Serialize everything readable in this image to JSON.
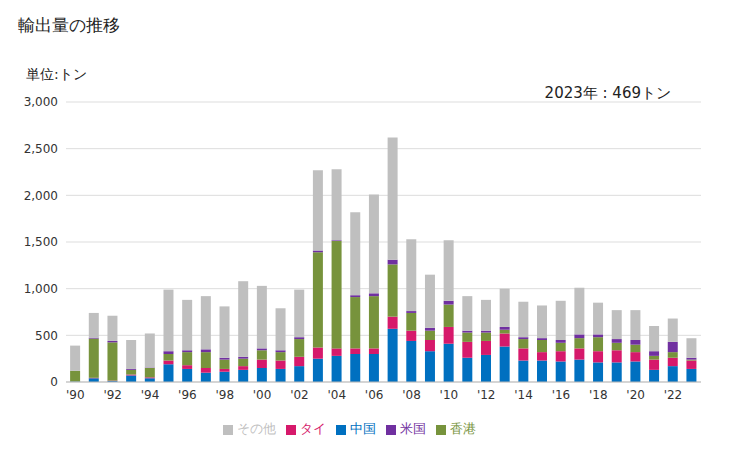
{
  "chart_data": {
    "type": "bar",
    "title": "輸出量の推移",
    "ylabel": "単位:トン",
    "annotations": [
      "2023年 : 469トン"
    ],
    "categories": [
      "'90",
      null,
      "'92",
      null,
      "'94",
      null,
      "'96",
      null,
      "'98",
      null,
      "'00",
      null,
      "'02",
      null,
      "'04",
      null,
      "'06",
      null,
      "'08",
      null,
      "'10",
      null,
      "'12",
      null,
      "'14",
      null,
      "'16",
      null,
      "'18",
      null,
      "'20",
      null,
      "'22",
      null
    ],
    "series": [
      {
        "name": "中国",
        "color": "#0070c0",
        "values": [
          5,
          40,
          10,
          70,
          40,
          190,
          140,
          100,
          110,
          130,
          150,
          140,
          170,
          250,
          280,
          300,
          300,
          570,
          440,
          330,
          410,
          260,
          290,
          380,
          230,
          230,
          220,
          240,
          210,
          210,
          220,
          130,
          170,
          140
        ]
      },
      {
        "name": "タイ",
        "color": "#d6196b",
        "values": [
          0,
          5,
          5,
          10,
          10,
          40,
          40,
          50,
          30,
          40,
          90,
          90,
          100,
          120,
          80,
          60,
          60,
          130,
          110,
          120,
          180,
          170,
          150,
          140,
          130,
          90,
          110,
          120,
          120,
          130,
          100,
          110,
          90,
          90
        ]
      },
      {
        "name": "香港",
        "color": "#77933c",
        "values": [
          115,
          420,
          410,
          50,
          100,
          70,
          140,
          170,
          100,
          80,
          100,
          90,
          190,
          1020,
          1150,
          550,
          560,
          560,
          190,
          100,
          240,
          100,
          90,
          40,
          100,
          130,
          90,
          110,
          150,
          80,
          80,
          40,
          60,
          10
        ]
      },
      {
        "name": "米国",
        "color": "#7030a0",
        "values": [
          0,
          10,
          15,
          10,
          5,
          30,
          20,
          30,
          20,
          20,
          20,
          20,
          20,
          20,
          10,
          20,
          30,
          50,
          20,
          30,
          40,
          20,
          20,
          30,
          20,
          20,
          30,
          40,
          30,
          40,
          50,
          50,
          110,
          20
        ]
      },
      {
        "name": "その他",
        "color": "#bfbfbf",
        "values": [
          270,
          265,
          270,
          310,
          365,
          660,
          540,
          570,
          550,
          810,
          670,
          450,
          510,
          860,
          760,
          890,
          1060,
          1310,
          770,
          570,
          650,
          370,
          330,
          410,
          380,
          350,
          420,
          500,
          340,
          310,
          320,
          270,
          250,
          209
        ]
      }
    ],
    "ylim": [
      0,
      3000
    ],
    "yticks": [
      0,
      500,
      {
        "value": 1000,
        "label": "1,000"
      },
      {
        "value": 1500,
        "label": "1,500"
      },
      {
        "value": 2000,
        "label": "2,000"
      },
      {
        "value": 2500,
        "label": "2,500"
      },
      {
        "value": 3000,
        "label": "3,000"
      }
    ],
    "stacked": true,
    "grid": true,
    "legend": "bottom"
  }
}
